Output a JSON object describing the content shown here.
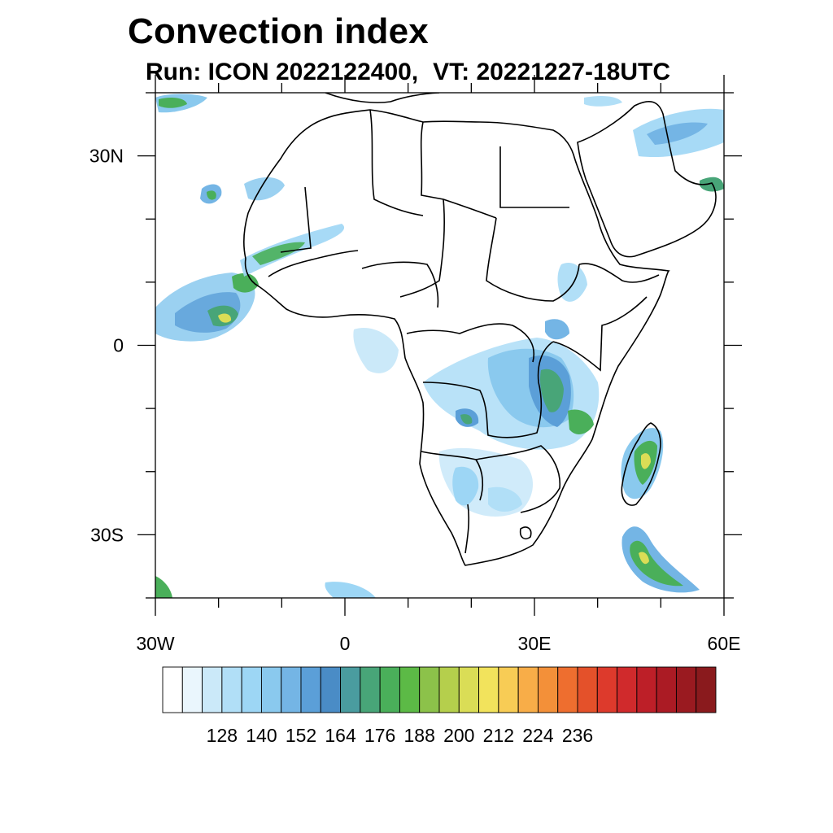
{
  "header": {
    "title": "Convection index",
    "run_label": "Run: ICON 2022122400,",
    "vt_label": "VT: 20221227-18UTC"
  },
  "map": {
    "lon_range": [
      -30,
      60
    ],
    "lat_range": [
      -40,
      40
    ],
    "lat_ticks": [
      {
        "value": 30,
        "label": "30N"
      },
      {
        "value": 0,
        "label": "0"
      },
      {
        "value": -30,
        "label": "30S"
      }
    ],
    "lon_ticks": [
      {
        "value": -30,
        "label": "30W"
      },
      {
        "value": 0,
        "label": "0"
      },
      {
        "value": 30,
        "label": "30E"
      },
      {
        "value": 60,
        "label": "60E"
      }
    ],
    "minor_tick_step_deg": 10
  },
  "colorbar": {
    "colors": [
      "#ffffff",
      "#eaf6fd",
      "#cbe9f9",
      "#b1dff7",
      "#9dd6f5",
      "#8ac9ee",
      "#74b5e5",
      "#5b9fd8",
      "#4a8cc6",
      "#4a9c9f",
      "#48a578",
      "#4aaf5a",
      "#5cba46",
      "#8cc24a",
      "#b5cf4c",
      "#dadd56",
      "#f2e35c",
      "#f8cc55",
      "#f8ad48",
      "#f39039",
      "#ee6e2f",
      "#e4512a",
      "#dd3a2c",
      "#d02a2c",
      "#bd1f28",
      "#ab1b24",
      "#9a1a20",
      "#8a1a1d"
    ],
    "labels": [
      "128",
      "140",
      "152",
      "164",
      "176",
      "188",
      "200",
      "212",
      "224",
      "236"
    ]
  }
}
